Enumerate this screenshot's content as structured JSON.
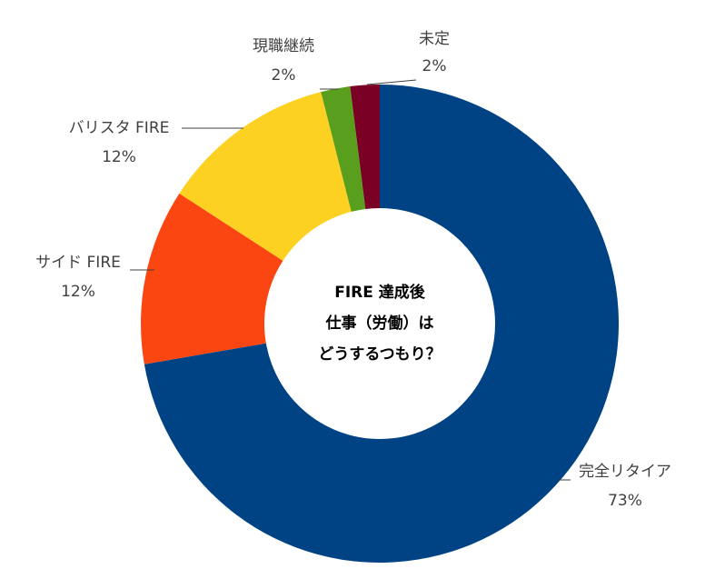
{
  "chart_data": {
    "type": "pie",
    "donut": true,
    "title": "FIRE 達成後 仕事（労働）は どうするつもり？",
    "title_lines": [
      "FIRE 達成後",
      "仕事（労働）は",
      "どうするつもり？"
    ],
    "slices": [
      {
        "label": "完全リタイア",
        "value": 73,
        "value_label": "73%",
        "color": "#004385"
      },
      {
        "label": "サイド FIRE",
        "value": 12,
        "value_label": "12%",
        "color": "#FC4612"
      },
      {
        "label": "バリスタ FIRE",
        "value": 12,
        "value_label": "12%",
        "color": "#FDD122"
      },
      {
        "label": "現職継続",
        "value": 2,
        "value_label": "2%",
        "color": "#5A9E1E"
      },
      {
        "label": "未定",
        "value": 2,
        "value_label": "2%",
        "color": "#7A0026"
      }
    ],
    "start": "top",
    "direction": "clockwise"
  }
}
